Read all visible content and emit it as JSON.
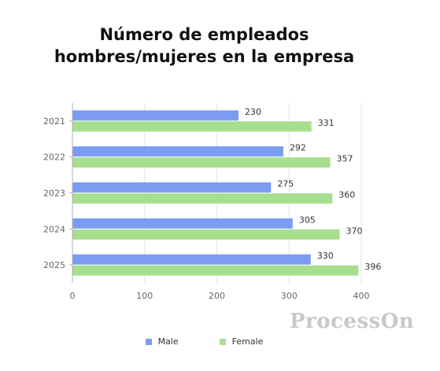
{
  "chart_data": {
    "type": "bar",
    "orientation": "horizontal",
    "title_lines": [
      "Número de empleados",
      "hombres/mujeres en la empresa"
    ],
    "categories": [
      "2021",
      "2022",
      "2023",
      "2024",
      "2025"
    ],
    "series": [
      {
        "name": "Male",
        "color": "#7b9cf0",
        "values": [
          230,
          292,
          275,
          305,
          330
        ]
      },
      {
        "name": "Female",
        "color": "#a8df8e",
        "values": [
          331,
          357,
          360,
          370,
          396
        ]
      }
    ],
    "xticks": [
      "0",
      "100",
      "200",
      "300",
      "400"
    ],
    "xlim": [
      0,
      400
    ],
    "grid": true,
    "legend_position": "bottom"
  },
  "watermark": "ProcessOn"
}
